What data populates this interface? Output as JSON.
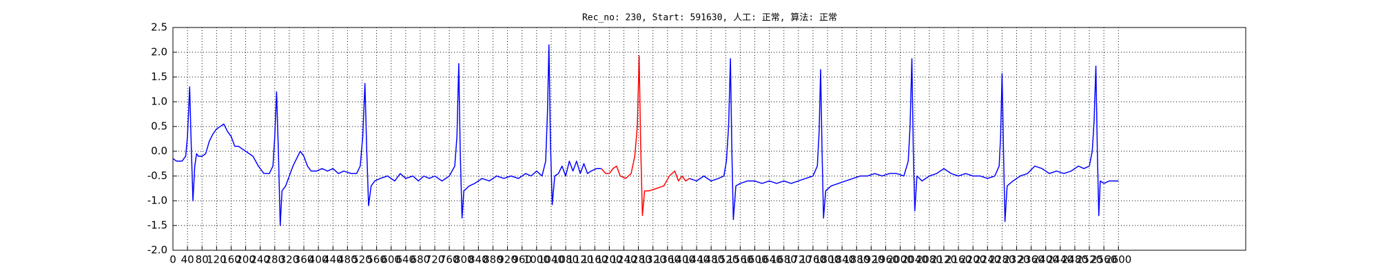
{
  "chart_data": {
    "type": "line",
    "title": "Rec_no: 230, Start: 591630, 人工: 正常, 算法: 正常",
    "xlim": [
      0,
      2950
    ],
    "xticks": [
      0,
      40,
      80,
      120,
      160,
      200,
      240,
      280,
      320,
      360,
      400,
      440,
      480,
      520,
      560,
      600,
      640,
      680,
      720,
      760,
      800,
      840,
      880,
      920,
      960,
      1000,
      1040,
      1080,
      1120,
      1160,
      1200,
      1240,
      1280,
      1320,
      1360,
      1400,
      1440,
      1480,
      1520,
      1560,
      1600,
      1640,
      1680,
      1720,
      1760,
      1800,
      1840,
      1880,
      1920,
      1960,
      2000,
      2040,
      2080,
      2120,
      2160,
      2200,
      2240,
      2280,
      2320,
      2360,
      2400,
      2440,
      2480,
      2520,
      2560,
      2600
    ],
    "ylim": [
      -2,
      2.5
    ],
    "yticks": [
      {
        "value": -2,
        "label": "-2.0"
      },
      -1.5,
      {
        "value": -1,
        "label": "-1.0"
      },
      -0.5,
      {
        "value": 0,
        "label": "0.0"
      },
      0.5,
      {
        "value": 1,
        "label": "1.0"
      },
      1.5,
      {
        "value": 2,
        "label": "2.0"
      },
      2.5
    ],
    "grid": true,
    "series": [
      {
        "color": "#0000ff",
        "x": [
          0,
          10,
          25,
          35,
          40,
          46,
          50,
          55,
          60,
          65,
          70,
          80,
          90,
          100,
          110,
          120,
          130,
          140,
          150,
          160,
          170,
          180,
          200,
          220,
          235,
          250,
          265,
          275,
          280,
          285,
          290,
          295,
          300,
          310,
          320,
          330,
          340,
          350,
          360,
          370,
          380,
          395,
          410,
          425,
          440,
          455,
          470,
          490,
          505,
          515,
          522,
          528,
          533,
          538,
          545,
          555,
          570,
          590,
          610,
          625,
          640,
          660,
          675,
          690,
          705,
          720,
          740,
          760,
          775,
          781,
          786,
          790,
          795,
          800,
          815,
          830,
          850,
          870,
          890,
          910,
          930,
          950,
          970,
          985,
          1000,
          1015,
          1025,
          1030,
          1034,
          1038,
          1043,
          1050,
          1060,
          1070,
          1080,
          1090,
          1100,
          1110,
          1120,
          1130,
          1140,
          1150,
          1165,
          1178,
          1300,
          1420,
          1440,
          1460,
          1480,
          1500,
          1515,
          1522,
          1528,
          1533,
          1537,
          1541,
          1548,
          1560,
          1580,
          1600,
          1620,
          1640,
          1660,
          1680,
          1700,
          1720,
          1740,
          1760,
          1772,
          1777,
          1781,
          1785,
          1789,
          1795,
          1810,
          1830,
          1850,
          1870,
          1890,
          1910,
          1930,
          1950,
          1970,
          1990,
          2010,
          2022,
          2027,
          2032,
          2036,
          2040,
          2046,
          2060,
          2080,
          2100,
          2120,
          2140,
          2160,
          2180,
          2200,
          2220,
          2240,
          2260,
          2272,
          2276,
          2280,
          2284,
          2288,
          2294,
          2310,
          2330,
          2350,
          2370,
          2390,
          2410,
          2430,
          2450,
          2470,
          2490,
          2505,
          2520,
          2528,
          2533,
          2538,
          2542,
          2546,
          2550,
          2560,
          2575,
          2590,
          2600
        ],
        "values": [
          -0.15,
          -0.2,
          -0.2,
          -0.1,
          0.3,
          1.3,
          0.2,
          -1.0,
          -0.3,
          -0.05,
          -0.1,
          -0.1,
          -0.05,
          0.2,
          0.35,
          0.45,
          0.5,
          0.55,
          0.4,
          0.3,
          0.1,
          0.1,
          0.0,
          -0.1,
          -0.3,
          -0.45,
          -0.45,
          -0.3,
          0.3,
          1.2,
          0.0,
          -1.5,
          -0.8,
          -0.7,
          -0.5,
          -0.3,
          -0.15,
          0.0,
          -0.1,
          -0.3,
          -0.4,
          -0.4,
          -0.35,
          -0.4,
          -0.35,
          -0.45,
          -0.4,
          -0.45,
          -0.45,
          -0.3,
          0.3,
          1.37,
          0.0,
          -1.1,
          -0.7,
          -0.6,
          -0.55,
          -0.5,
          -0.6,
          -0.45,
          -0.55,
          -0.5,
          -0.6,
          -0.5,
          -0.55,
          -0.5,
          -0.6,
          -0.5,
          -0.3,
          0.3,
          1.77,
          0.0,
          -1.35,
          -0.8,
          -0.7,
          -0.65,
          -0.55,
          -0.6,
          -0.5,
          -0.55,
          -0.5,
          -0.55,
          -0.45,
          -0.5,
          -0.4,
          -0.5,
          -0.2,
          0.8,
          2.15,
          0.2,
          -1.08,
          -0.5,
          -0.45,
          -0.3,
          -0.5,
          -0.2,
          -0.4,
          -0.2,
          -0.45,
          -0.25,
          -0.45,
          -0.4,
          -0.35,
          -0.35,
          null,
          -0.55,
          -0.6,
          -0.5,
          -0.6,
          -0.55,
          -0.5,
          -0.2,
          0.5,
          1.87,
          0.0,
          -1.38,
          -0.7,
          -0.65,
          -0.6,
          -0.6,
          -0.65,
          -0.6,
          -0.65,
          -0.6,
          -0.65,
          -0.6,
          -0.55,
          -0.5,
          -0.3,
          0.4,
          1.65,
          0.0,
          -1.35,
          -0.8,
          -0.7,
          -0.65,
          -0.6,
          -0.55,
          -0.5,
          -0.5,
          -0.45,
          -0.5,
          -0.45,
          -0.45,
          -0.5,
          -0.2,
          0.5,
          1.87,
          0.0,
          -1.2,
          -0.5,
          -0.6,
          -0.5,
          -0.45,
          -0.35,
          -0.45,
          -0.5,
          -0.45,
          -0.5,
          -0.5,
          -0.55,
          -0.5,
          -0.3,
          0.3,
          1.57,
          0.0,
          -1.42,
          -0.7,
          -0.6,
          -0.5,
          -0.45,
          -0.3,
          -0.35,
          -0.45,
          -0.4,
          -0.45,
          -0.4,
          -0.3,
          -0.35,
          -0.3,
          0.0,
          0.6,
          1.72,
          0.0,
          -1.3,
          -0.6,
          -0.65,
          -0.6,
          -0.6,
          -0.6
        ]
      },
      {
        "color": "#ff0000",
        "x": [
          1178,
          1190,
          1200,
          1210,
          1220,
          1230,
          1245,
          1260,
          1270,
          1277,
          1282,
          1286,
          1291,
          1297,
          1310,
          1330,
          1350,
          1365,
          1380,
          1390,
          1400,
          1410,
          1420
        ],
        "values": [
          -0.35,
          -0.45,
          -0.45,
          -0.35,
          -0.3,
          -0.5,
          -0.55,
          -0.45,
          -0.1,
          0.5,
          1.93,
          0.2,
          -1.3,
          -0.8,
          -0.8,
          -0.75,
          -0.7,
          -0.5,
          -0.4,
          -0.6,
          -0.5,
          -0.6,
          -0.55
        ]
      }
    ]
  }
}
